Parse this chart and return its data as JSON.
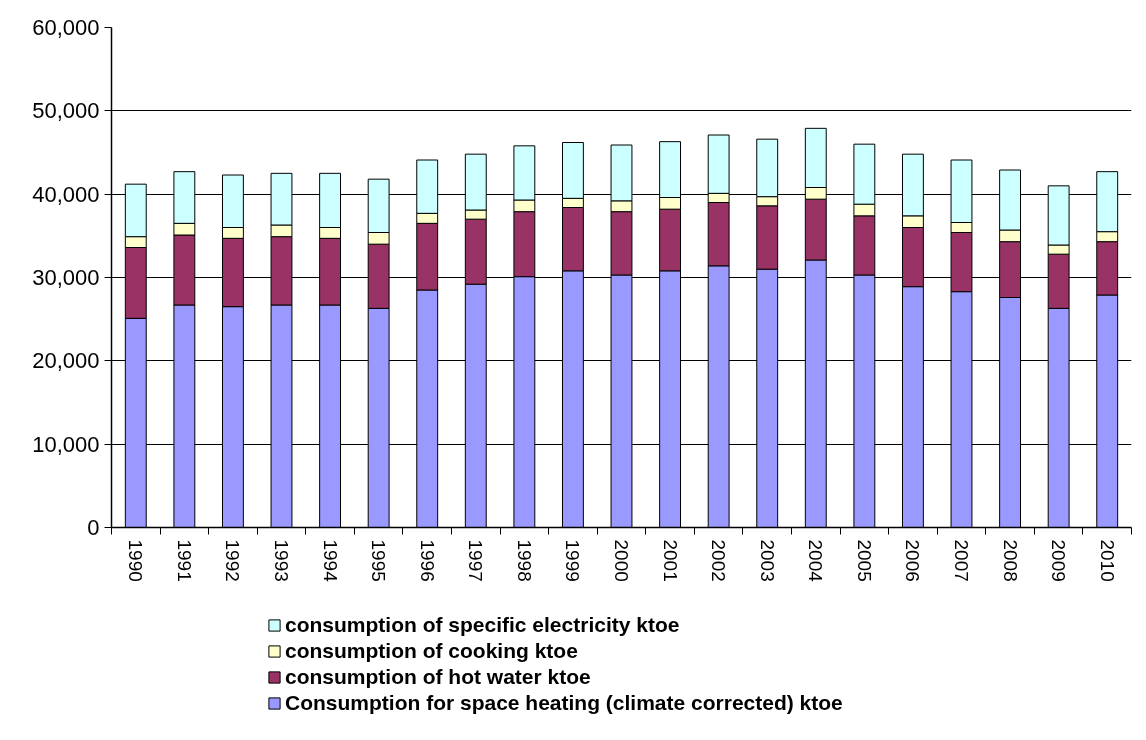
{
  "chart_data": {
    "type": "bar",
    "stacked": true,
    "categories": [
      "1990",
      "1991",
      "1992",
      "1993",
      "1994",
      "1995",
      "1996",
      "1997",
      "1998",
      "1999",
      "2000",
      "2001",
      "2002",
      "2003",
      "2004",
      "2005",
      "2006",
      "2007",
      "2008",
      "2009",
      "2010"
    ],
    "series": [
      {
        "name": "Consumption for space heating (climate corrected) ktoe",
        "color": "#9999ff",
        "values": [
          25100,
          26700,
          26500,
          26700,
          26700,
          26300,
          28500,
          29200,
          30100,
          30800,
          30300,
          30800,
          31400,
          31000,
          32100,
          30300,
          28900,
          28300,
          27600,
          26300,
          27900
        ]
      },
      {
        "name": "consumption of hot water ktoe",
        "color": "#993366",
        "values": [
          8500,
          8400,
          8200,
          8200,
          8000,
          7700,
          8000,
          7800,
          7800,
          7600,
          7600,
          7400,
          7600,
          7600,
          7300,
          7100,
          7100,
          7100,
          6700,
          6500,
          6400
        ]
      },
      {
        "name": "consumption of cooking ktoe",
        "color": "#ffffcc",
        "values": [
          1300,
          1400,
          1300,
          1400,
          1300,
          1400,
          1200,
          1100,
          1400,
          1100,
          1300,
          1400,
          1100,
          1100,
          1400,
          1400,
          1400,
          1200,
          1400,
          1100,
          1200
        ]
      },
      {
        "name": "consumption of specific electricity ktoe",
        "color": "#ccffff",
        "values": [
          6300,
          6200,
          6300,
          6200,
          6500,
          6400,
          6400,
          6700,
          6500,
          6700,
          6700,
          6700,
          7000,
          6900,
          7100,
          7200,
          7400,
          7500,
          7200,
          7100,
          7200
        ]
      }
    ],
    "ylim": [
      0,
      60000
    ],
    "yticks": [
      0,
      {
        "value": 10000,
        "label": "10,000"
      },
      {
        "value": 20000,
        "label": "20,000"
      },
      {
        "value": 30000,
        "label": "30,000"
      },
      {
        "value": 40000,
        "label": "40,000"
      },
      {
        "value": 50000,
        "label": "50,000"
      },
      {
        "value": 60000,
        "label": "60,000"
      }
    ],
    "grid": "y",
    "legend": "bottom"
  }
}
